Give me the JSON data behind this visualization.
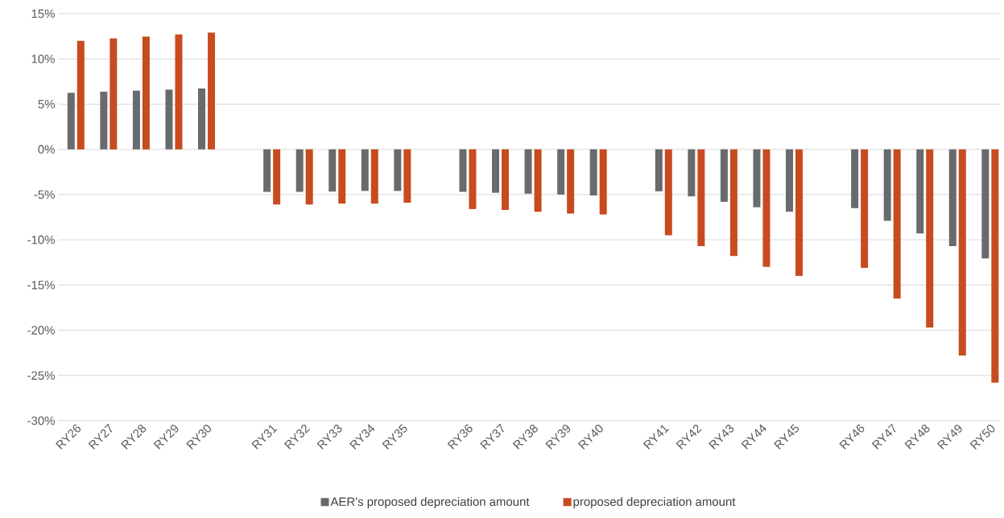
{
  "chart_data": {
    "type": "bar",
    "categories": [
      "RY26",
      "RY27",
      "RY28",
      "RY29",
      "RY30",
      null,
      "RY31",
      "RY32",
      "RY33",
      "RY34",
      "RY35",
      null,
      "RY36",
      "RY37",
      "RY38",
      "RY39",
      "RY40",
      null,
      "RY41",
      "RY42",
      "RY43",
      "RY44",
      "RY45",
      null,
      "RY46",
      "RY47",
      "RY48",
      "RY49",
      "RY50"
    ],
    "series": [
      {
        "name": "AER's proposed depreciation amount",
        "color": "#696a6d",
        "values": [
          6.25,
          6.37,
          6.49,
          6.6,
          6.73,
          null,
          -4.7,
          -4.7,
          -4.67,
          -4.6,
          -4.6,
          null,
          -4.7,
          -4.8,
          -4.9,
          -5.0,
          -5.1,
          null,
          -4.64,
          -5.2,
          -5.8,
          -6.4,
          -6.9,
          null,
          -6.5,
          -7.9,
          -9.3,
          -10.7,
          -12.05
        ]
      },
      {
        "name": "proposed depreciation amount",
        "color": "#c84b20",
        "values": [
          12.0,
          12.26,
          12.47,
          12.7,
          12.9,
          null,
          -6.1,
          -6.1,
          -6.0,
          -6.0,
          -5.9,
          null,
          -6.6,
          -6.7,
          -6.9,
          -7.1,
          -7.2,
          null,
          -9.5,
          -10.7,
          -11.8,
          -13.0,
          -14.0,
          null,
          -13.1,
          -16.5,
          -19.7,
          -22.8,
          -25.8
        ]
      }
    ],
    "ylim": [
      -30,
      15
    ],
    "yticks": [
      {
        "value": -30,
        "label": "-30%"
      },
      {
        "value": -25,
        "label": "-25%"
      },
      {
        "value": -20,
        "label": "-20%"
      },
      {
        "value": -15,
        "label": "-15%"
      },
      {
        "value": -10,
        "label": "-10%"
      },
      {
        "value": -5,
        "label": "-5%"
      },
      {
        "value": 0,
        "label": "0%"
      },
      {
        "value": 5,
        "label": "5%"
      },
      {
        "value": 10,
        "label": "10%"
      },
      {
        "value": 15,
        "label": "15%"
      }
    ],
    "grid": "y",
    "legend": "bottom"
  }
}
